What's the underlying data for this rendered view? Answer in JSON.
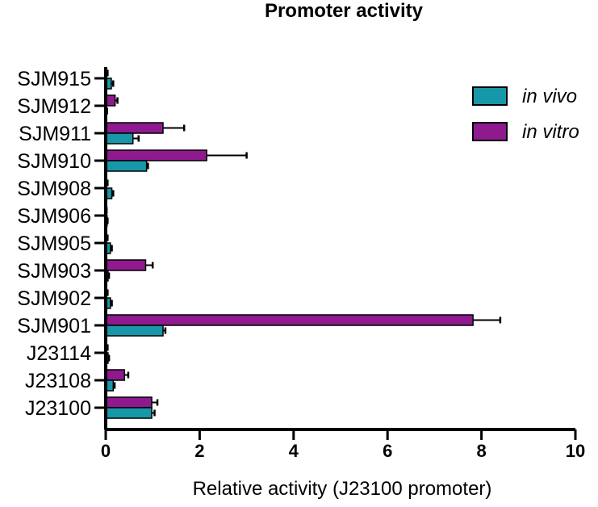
{
  "chart_data": {
    "type": "bar",
    "orientation": "horizontal",
    "title": "Promoter activity",
    "xlabel": "Relative activity (J23100 promoter)",
    "ylabel": "",
    "xlim": [
      0,
      10
    ],
    "x_ticks": [
      0,
      2,
      4,
      6,
      8,
      10
    ],
    "categories": [
      "SJM915",
      "SJM912",
      "SJM911",
      "SJM910",
      "SJM908",
      "SJM906",
      "SJM905",
      "SJM903",
      "SJM902",
      "SJM901",
      "J23114",
      "J23108",
      "J23100"
    ],
    "series": [
      {
        "name": "in vitro",
        "color": "#8e1a8e",
        "values": [
          0.02,
          0.2,
          1.22,
          2.15,
          0.02,
          0.01,
          0.02,
          0.85,
          0.02,
          7.82,
          0.02,
          0.4,
          0.98
        ],
        "errors": [
          0.02,
          0.05,
          0.45,
          0.85,
          0.02,
          0.01,
          0.02,
          0.15,
          0.02,
          0.58,
          0.02,
          0.08,
          0.12
        ]
      },
      {
        "name": "in vivo",
        "color": "#1798a8",
        "values": [
          0.12,
          0.02,
          0.58,
          0.87,
          0.13,
          0.03,
          0.1,
          0.05,
          0.1,
          1.22,
          0.05,
          0.16,
          0.98
        ],
        "errors": [
          0.04,
          0.01,
          0.12,
          0.03,
          0.03,
          0.01,
          0.03,
          0.02,
          0.03,
          0.05,
          0.02,
          0.03,
          0.06
        ]
      }
    ],
    "legend": {
      "position": "top-right",
      "entries": [
        "in vivo",
        "in vitro"
      ]
    },
    "grid": false
  }
}
